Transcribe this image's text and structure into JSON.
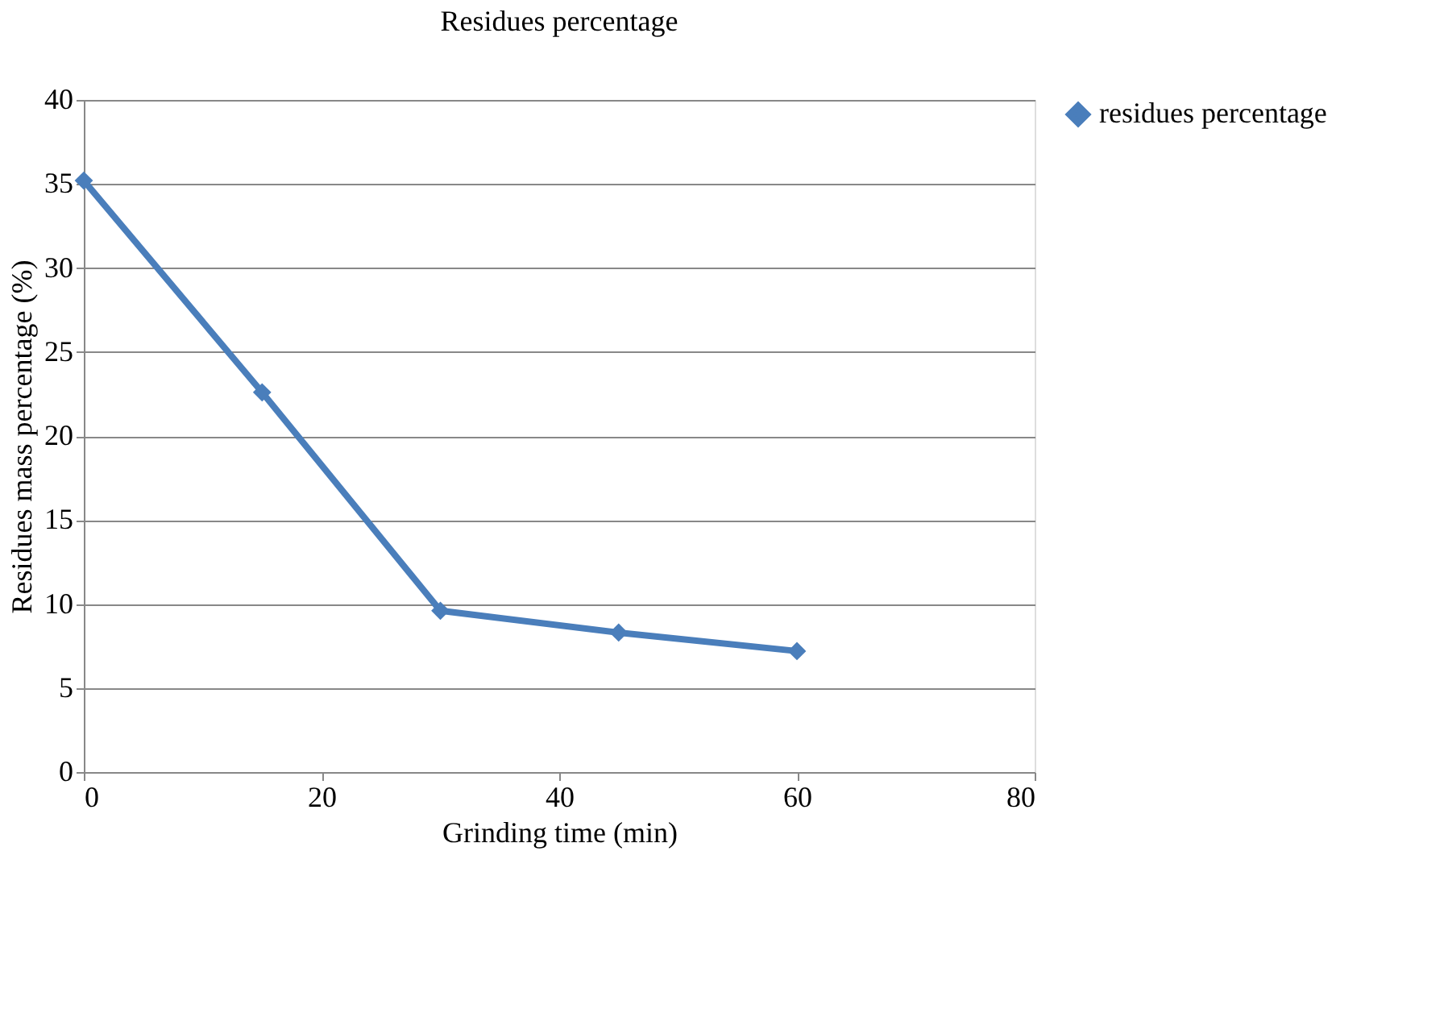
{
  "chart_data": {
    "type": "line",
    "title": "Residues percentage",
    "xlabel": "Grinding time (min)",
    "ylabel": "Residues mass percentage (%)",
    "x": [
      0,
      15,
      30,
      45,
      60
    ],
    "series": [
      {
        "name": "residues percentage",
        "color": "#4a7ebb",
        "values": [
          35.2,
          22.6,
          9.6,
          8.3,
          7.2
        ]
      }
    ],
    "xlim": [
      0,
      80
    ],
    "xticks": [
      0,
      20,
      40,
      60,
      80
    ],
    "ylim": [
      0,
      40
    ],
    "yticks": [
      0,
      5,
      10,
      15,
      20,
      25,
      30,
      35,
      40
    ],
    "grid": "y",
    "legend": "right",
    "marker": "diamond",
    "line_style": "solid"
  }
}
